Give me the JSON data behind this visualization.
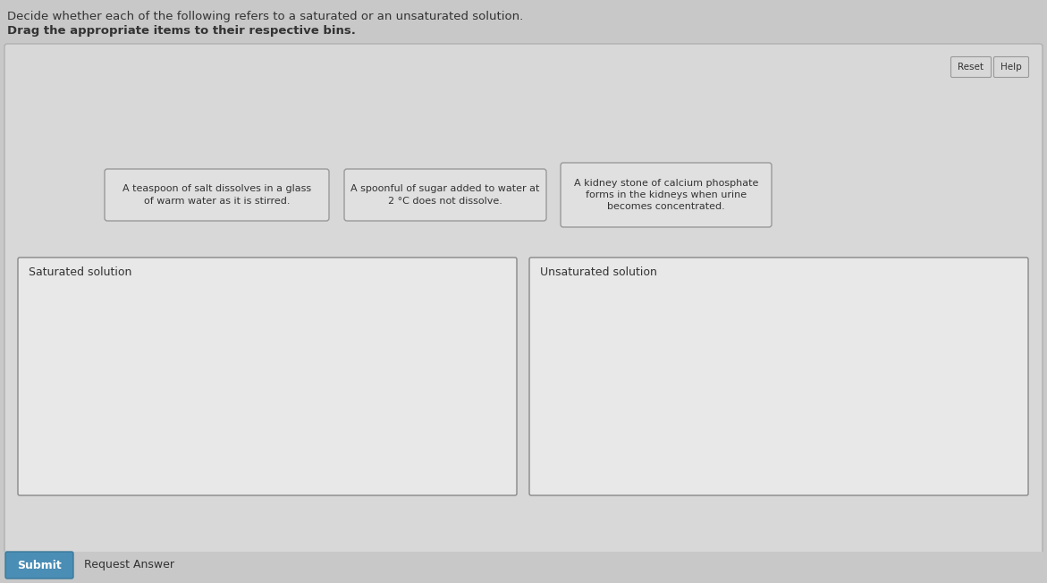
{
  "title_line1": "Decide whether each of the following refers to a saturated or an unsaturated solution.",
  "title_line2": "Drag the appropriate items to their respective bins.",
  "page_bg": "#c8c8c8",
  "main_box_bg": "#d8d8d8",
  "main_box_border": "#b0b0b0",
  "card_bg": "#e0e0e0",
  "card_border": "#999999",
  "bin_bg": "#e8e8e8",
  "bin_border": "#888888",
  "cards": [
    "A teaspoon of salt dissolves in a glass\nof warm water as it is stirred.",
    "A spoonful of sugar added to water at\n2 °C does not dissolve.",
    "A kidney stone of calcium phosphate\nforms in the kidneys when urine\nbecomes concentrated."
  ],
  "bin_labels": [
    "Saturated solution",
    "Unsaturated solution"
  ],
  "submit_label": "Submit",
  "request_label": "Request Answer",
  "reset_label": "Reset",
  "help_label": "Help",
  "submit_bg": "#4a8db5",
  "submit_border": "#3a7a9a",
  "button_bg": "#d8d8d8",
  "button_border": "#999999",
  "text_color": "#333333",
  "title1_fontsize": 9.5,
  "title2_fontsize": 9.5,
  "card_fontsize": 8,
  "bin_label_fontsize": 9,
  "button_fontsize": 7.5,
  "submit_fontsize": 9
}
